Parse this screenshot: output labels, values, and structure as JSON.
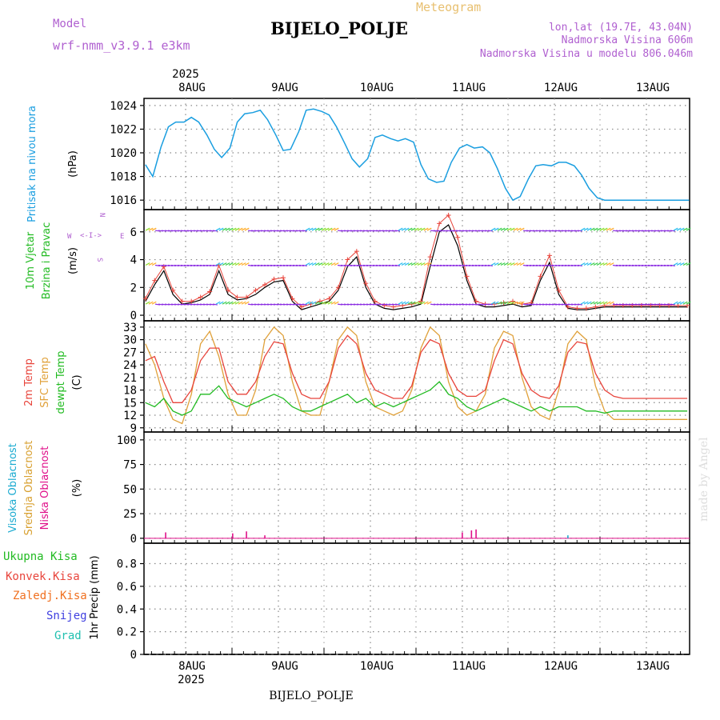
{
  "header": {
    "model_label": "Model",
    "model_name": "wrf-nmm_v3.9.1 e3km",
    "chart_kind": "Meteogram",
    "station": "BIJELO_POLJE",
    "lonlat": "lon,lat (19.7E, 43.04N)",
    "altitude": "Nadmorska Visina 606m",
    "model_altitude": "Nadmorska Visina u modelu 806.046m",
    "credit": "made by Angel",
    "footer_station": "BIJELO_POLJE"
  },
  "time_axis": {
    "year": "2025",
    "day_labels": [
      "8AUG",
      "9AUG",
      "10AUG",
      "11AUG",
      "12AUG",
      "13AUG"
    ]
  },
  "colors": {
    "pressure": "#1a9ee0",
    "wind_label": "#22bb22",
    "temp2m": "#e8453c",
    "sfc": "#e0a13a",
    "dew": "#22bb22",
    "high_cloud": "#1aaad0",
    "mid_cloud": "#d8a030",
    "low_cloud": "#e0108a",
    "purple": "#b060d0",
    "rain_total": "#22bb22",
    "rain_conv": "#e8453c",
    "rain_frozen": "#f07020",
    "snow": "#4040e0",
    "grad": "#20c0b0"
  },
  "chart_data": [
    {
      "id": "pressure",
      "type": "line",
      "ylabel": "Pritisak na nivou mora",
      "unit": "(hPa)",
      "ylim": [
        1015.2,
        1024.6
      ],
      "ticks": [
        "1016",
        "1018",
        "1020",
        "1022",
        "1024"
      ],
      "tick_values": [
        1016,
        1018,
        1020,
        1022,
        1024
      ],
      "series": [
        {
          "name": "MSLP",
          "x_days": [
            0,
            0.08,
            0.17,
            0.25,
            0.33,
            0.42,
            0.5,
            0.58,
            0.67,
            0.75,
            0.83,
            0.92,
            1.0,
            1.08,
            1.17,
            1.25,
            1.33,
            1.42,
            1.5,
            1.58,
            1.67,
            1.75,
            1.83,
            1.92,
            2.0,
            2.08,
            2.17,
            2.25,
            2.33,
            2.42,
            2.5,
            2.58,
            2.67,
            2.75,
            2.83,
            2.92,
            3.0,
            3.08,
            3.17,
            3.25,
            3.33,
            3.42,
            3.5,
            3.58,
            3.67,
            3.75,
            3.83,
            3.92,
            4.0,
            4.08,
            4.17,
            4.25,
            4.33,
            4.42,
            4.5,
            4.58,
            4.67,
            4.75,
            4.83,
            4.92,
            5.0,
            5.08,
            5.17,
            5.25,
            5.33,
            5.42,
            5.5,
            5.58,
            5.67,
            5.75,
            5.83,
            5.92,
            6.0
          ],
          "values": [
            1019.0,
            1018.0,
            1020.5,
            1022.2,
            1022.6,
            1022.6,
            1023.0,
            1022.6,
            1021.5,
            1020.3,
            1019.6,
            1020.4,
            1022.6,
            1023.3,
            1023.4,
            1023.6,
            1022.8,
            1021.5,
            1020.2,
            1020.3,
            1021.8,
            1023.6,
            1023.7,
            1023.5,
            1023.2,
            1022.2,
            1020.8,
            1019.5,
            1018.8,
            1019.5,
            1021.3,
            1021.5,
            1021.2,
            1021.0,
            1021.2,
            1020.9,
            1019.0,
            1017.8,
            1017.5,
            1017.6,
            1019.2,
            1020.4,
            1020.7,
            1020.4,
            1020.5,
            1020.0,
            1018.7,
            1017.0,
            1016.0,
            1016.3,
            1017.8,
            1018.9,
            1019.0,
            1018.9,
            1019.2,
            1019.2,
            1018.9,
            1018.1,
            1017.0,
            1016.2,
            1016.0,
            1016.0,
            1016.0,
            1016.0,
            1016.0,
            1016.0,
            1016.0,
            1016.0,
            1016.0,
            1016.0,
            1016.0,
            1016.0,
            1016.0
          ]
        }
      ]
    },
    {
      "id": "wind",
      "type": "line",
      "ylabel_1": "10m Vjetar",
      "ylabel_2": "Brzina i Pravac",
      "unit": "(m/s)",
      "compass": {
        "w": "W",
        "e": "E",
        "n": "N",
        "s": "S"
      },
      "ylim": [
        -0.4,
        7.6
      ],
      "ticks": [
        "0",
        "2",
        "4",
        "6"
      ],
      "tick_values": [
        0,
        2,
        4,
        6
      ],
      "series": [
        {
          "name": "wind speed",
          "x_days": [
            0,
            0.1,
            0.2,
            0.3,
            0.4,
            0.5,
            0.6,
            0.7,
            0.8,
            0.9,
            1.0,
            1.1,
            1.2,
            1.3,
            1.4,
            1.5,
            1.6,
            1.7,
            1.8,
            1.9,
            2.0,
            2.1,
            2.2,
            2.3,
            2.4,
            2.5,
            2.6,
            2.7,
            2.8,
            2.9,
            3.0,
            3.1,
            3.2,
            3.3,
            3.4,
            3.5,
            3.6,
            3.7,
            3.8,
            3.9,
            4.0,
            4.1,
            4.2,
            4.3,
            4.4,
            4.5,
            4.6,
            4.7,
            4.8,
            4.9,
            5.0,
            5.1,
            5.2,
            5.3,
            5.4,
            5.5,
            5.6,
            5.7,
            5.8,
            5.9,
            6.0
          ],
          "values": [
            1.0,
            2.2,
            3.2,
            1.5,
            0.8,
            0.9,
            1.1,
            1.5,
            3.2,
            1.5,
            1.1,
            1.2,
            1.5,
            2.0,
            2.4,
            2.5,
            1.0,
            0.4,
            0.6,
            0.8,
            1.0,
            1.8,
            3.5,
            4.2,
            2.0,
            0.8,
            0.5,
            0.4,
            0.5,
            0.6,
            0.8,
            3.5,
            6.0,
            6.5,
            5.0,
            2.5,
            0.8,
            0.6,
            0.6,
            0.7,
            0.8,
            0.6,
            0.7,
            2.5,
            3.8,
            1.5,
            0.5,
            0.4,
            0.4,
            0.5,
            0.6,
            0.6,
            0.6,
            0.6,
            0.6,
            0.6,
            0.6,
            0.6,
            0.6,
            0.6,
            0.6
          ]
        },
        {
          "name": "gust",
          "x_days": [
            0,
            0.1,
            0.2,
            0.3,
            0.4,
            0.5,
            0.6,
            0.7,
            0.8,
            0.9,
            1.0,
            1.1,
            1.2,
            1.3,
            1.4,
            1.5,
            1.6,
            1.7,
            1.8,
            1.9,
            2.0,
            2.1,
            2.2,
            2.3,
            2.4,
            2.5,
            2.6,
            2.7,
            2.8,
            2.9,
            3.0,
            3.1,
            3.2,
            3.3,
            3.4,
            3.5,
            3.6,
            3.7,
            3.8,
            3.9,
            4.0,
            4.1,
            4.2,
            4.3,
            4.4,
            4.5,
            4.6,
            4.7,
            4.8,
            4.9,
            5.0,
            5.1,
            5.2,
            5.3,
            5.4,
            5.5,
            5.6,
            5.7,
            5.8,
            5.9,
            6.0
          ],
          "values": [
            1.2,
            2.5,
            3.5,
            1.8,
            1.0,
            1.0,
            1.3,
            1.7,
            3.6,
            1.8,
            1.3,
            1.3,
            1.8,
            2.2,
            2.6,
            2.7,
            1.2,
            0.6,
            0.8,
            1.0,
            1.2,
            2.0,
            4.0,
            4.6,
            2.3,
            1.0,
            0.7,
            0.6,
            0.7,
            0.8,
            1.0,
            4.2,
            6.6,
            7.2,
            5.6,
            2.8,
            1.0,
            0.8,
            0.8,
            0.9,
            1.0,
            0.8,
            0.9,
            2.8,
            4.3,
            1.8,
            0.6,
            0.5,
            0.5,
            0.6,
            0.7,
            0.7,
            0.7,
            0.7,
            0.7,
            0.7,
            0.7,
            0.7,
            0.7,
            0.7,
            0.7
          ]
        }
      ]
    },
    {
      "id": "temperature",
      "type": "line",
      "ylabel_1": "2m Temp",
      "ylabel_2": "SFC Temp",
      "ylabel_3": "dewpt Temp",
      "unit": "(C)",
      "ylim": [
        8.0,
        34.5
      ],
      "ticks": [
        "9",
        "12",
        "15",
        "18",
        "21",
        "24",
        "27",
        "30",
        "33"
      ],
      "tick_values": [
        9,
        12,
        15,
        18,
        21,
        24,
        27,
        30,
        33
      ],
      "series": [
        {
          "name": "2m Temp",
          "x_days": [
            0,
            0.1,
            0.2,
            0.3,
            0.4,
            0.5,
            0.6,
            0.7,
            0.8,
            0.9,
            1.0,
            1.1,
            1.2,
            1.3,
            1.4,
            1.5,
            1.6,
            1.7,
            1.8,
            1.9,
            2.0,
            2.1,
            2.2,
            2.3,
            2.4,
            2.5,
            2.6,
            2.7,
            2.8,
            2.9,
            3.0,
            3.1,
            3.2,
            3.3,
            3.4,
            3.5,
            3.6,
            3.7,
            3.8,
            3.9,
            4.0,
            4.1,
            4.2,
            4.3,
            4.4,
            4.5,
            4.6,
            4.7,
            4.8,
            4.9,
            5.0,
            5.1,
            5.2,
            5.3,
            5.4,
            5.5,
            5.6,
            5.7,
            5.8,
            5.9,
            6.0
          ],
          "values": [
            25,
            26,
            20,
            15,
            15,
            18,
            25,
            28,
            28,
            20,
            17,
            17,
            20,
            26,
            29.5,
            29,
            22,
            17,
            16,
            16,
            20,
            28,
            31,
            29,
            22,
            18,
            17,
            16,
            16,
            19,
            27,
            30,
            29,
            22,
            18,
            16.5,
            16.5,
            18,
            25,
            30,
            29,
            22,
            18,
            16.5,
            16,
            19,
            27,
            29.5,
            29,
            22,
            18,
            16.5,
            16,
            16,
            16,
            16,
            16,
            16,
            16,
            16,
            16
          ]
        },
        {
          "name": "SFC Temp",
          "x_days": [
            0,
            0.1,
            0.2,
            0.3,
            0.4,
            0.5,
            0.6,
            0.7,
            0.8,
            0.9,
            1.0,
            1.1,
            1.2,
            1.3,
            1.4,
            1.5,
            1.6,
            1.7,
            1.8,
            1.9,
            2.0,
            2.1,
            2.2,
            2.3,
            2.4,
            2.5,
            2.6,
            2.7,
            2.8,
            2.9,
            3.0,
            3.1,
            3.2,
            3.3,
            3.4,
            3.5,
            3.6,
            3.7,
            3.8,
            3.9,
            4.0,
            4.1,
            4.2,
            4.3,
            4.4,
            4.5,
            4.6,
            4.7,
            4.8,
            4.9,
            5.0,
            5.1,
            5.2,
            5.3,
            5.4,
            5.5,
            5.6,
            5.7,
            5.8,
            5.9,
            6.0
          ],
          "values": [
            29,
            24,
            16,
            11,
            10,
            17,
            29,
            32,
            26,
            17,
            12,
            12,
            18,
            30,
            33,
            31,
            20,
            13,
            12,
            12,
            20,
            30,
            33,
            31,
            20,
            14,
            13,
            12,
            13,
            18,
            28,
            33,
            31,
            20,
            14,
            12,
            13,
            17,
            28,
            32,
            31,
            21,
            14,
            12,
            11,
            18,
            29,
            32,
            30,
            19,
            13,
            11,
            11,
            11,
            11,
            11,
            11,
            11,
            11,
            11,
            11
          ]
        },
        {
          "name": "dewpt Temp",
          "x_days": [
            0,
            0.1,
            0.2,
            0.3,
            0.4,
            0.5,
            0.6,
            0.7,
            0.8,
            0.9,
            1.0,
            1.1,
            1.2,
            1.3,
            1.4,
            1.5,
            1.6,
            1.7,
            1.8,
            1.9,
            2.0,
            2.1,
            2.2,
            2.3,
            2.4,
            2.5,
            2.6,
            2.7,
            2.8,
            2.9,
            3.0,
            3.1,
            3.2,
            3.3,
            3.4,
            3.5,
            3.6,
            3.7,
            3.8,
            3.9,
            4.0,
            4.1,
            4.2,
            4.3,
            4.4,
            4.5,
            4.6,
            4.7,
            4.8,
            4.9,
            5.0,
            5.1,
            5.2,
            5.3,
            5.4,
            5.5,
            5.6,
            5.7,
            5.8,
            5.9,
            6.0
          ],
          "values": [
            15,
            14,
            16,
            13,
            12,
            13,
            17,
            17,
            19,
            16,
            15,
            14,
            15,
            16,
            17,
            16,
            14,
            13,
            13,
            14,
            15,
            16,
            17,
            15,
            16,
            14,
            15,
            14,
            15,
            16,
            17,
            18,
            20,
            17,
            16,
            14,
            13,
            14,
            15,
            16,
            15,
            14,
            13,
            14,
            13,
            14,
            14,
            14,
            13,
            13,
            12.5,
            13,
            13,
            13,
            13,
            13,
            13,
            13,
            13,
            13,
            13
          ]
        }
      ]
    },
    {
      "id": "cloud",
      "type": "bar",
      "ylabel_1": "Visoka Oblacnost",
      "ylabel_2": "Srednja Oblacnost",
      "ylabel_3": "Niska Oblacnost",
      "unit": "(%)",
      "ylim": [
        -5,
        108
      ],
      "ticks": [
        "0",
        "25",
        "50",
        "75",
        "100"
      ],
      "tick_values": [
        0,
        25,
        50,
        75,
        100
      ],
      "series": [
        {
          "name": "Niska Oblacnost",
          "x_days": [
            0.22,
            0.95,
            1.1,
            1.3,
            3.45,
            3.55,
            3.6
          ],
          "values": [
            6,
            5,
            7,
            3,
            6,
            8,
            9
          ]
        },
        {
          "name": "Visoka Oblacnost",
          "x_days": [
            4.6
          ],
          "values": [
            3
          ]
        }
      ]
    },
    {
      "id": "precip",
      "type": "bar",
      "legend": [
        "Ukupna Kisa",
        "Konvek.Kisa",
        "Zaledj.Kisa",
        "Snijeg",
        "Grad"
      ],
      "ylabel": "1hr Precip (mm)",
      "ylim": [
        0,
        0.98
      ],
      "ticks": [
        "0",
        "0.2",
        "0.4",
        "0.6",
        "0.8"
      ],
      "tick_values": [
        0,
        0.2,
        0.4,
        0.6,
        0.8
      ],
      "series": []
    }
  ]
}
